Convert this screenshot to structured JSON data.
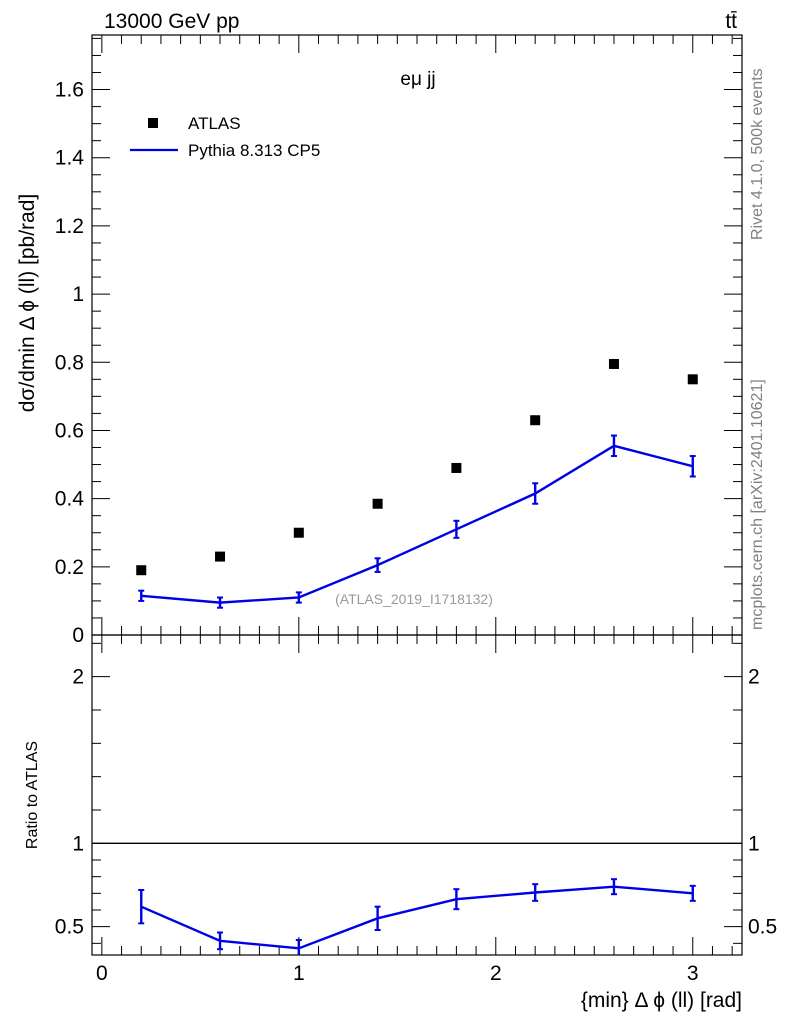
{
  "header": {
    "left": "13000 GeV pp",
    "right": "tt̄"
  },
  "side_text": {
    "rivet": "Rivet 4.1.0,  500k events",
    "mcplots": "mcplots.cern.ch [arXiv:2401.10621]"
  },
  "colors": {
    "mc": "#0000e6",
    "data": "#000000",
    "watermark": "#9a9a9a"
  },
  "chart_data": [
    {
      "type": "scatter",
      "panel": "main",
      "title": "eμ jj",
      "xlabel": "{min} Δ ϕ (ll) [rad]",
      "ylabel": "dσ/dmin Δ ϕ (ll) [pb/rad]",
      "xlim": [
        -0.05,
        3.25
      ],
      "ylim": [
        0,
        1.76
      ],
      "yticks": [
        "0",
        "0.2",
        "0.4",
        "0.6",
        "0.8",
        "1",
        "1.2",
        "1.4",
        "1.6"
      ],
      "watermark": "(ATLAS_2019_I1718132)",
      "legend": [
        {
          "label": "ATLAS",
          "marker": "square"
        },
        {
          "label": "Pythia 8.313 CP5",
          "marker": "line"
        }
      ],
      "series": [
        {
          "name": "ATLAS",
          "x": [
            0.2,
            0.6,
            1.0,
            1.4,
            1.8,
            2.2,
            2.6,
            3.0
          ],
          "y": [
            0.19,
            0.23,
            0.3,
            0.385,
            0.49,
            0.63,
            0.795,
            0.75
          ]
        },
        {
          "name": "Pythia 8.313 CP5",
          "x": [
            0.2,
            0.6,
            1.0,
            1.4,
            1.8,
            2.2,
            2.6,
            3.0
          ],
          "y": [
            0.115,
            0.095,
            0.11,
            0.205,
            0.31,
            0.415,
            0.555,
            0.495
          ],
          "yerr": [
            0.015,
            0.015,
            0.015,
            0.02,
            0.025,
            0.03,
            0.03,
            0.03
          ]
        }
      ]
    },
    {
      "type": "line",
      "panel": "ratio",
      "ylabel": "Ratio to ATLAS",
      "xlim": [
        -0.05,
        3.25
      ],
      "ylim": [
        0.33,
        2.25
      ],
      "yticks": [
        "0.5",
        "1",
        "2"
      ],
      "xticks": [
        "0",
        "1",
        "2",
        "3"
      ],
      "reference_line": 1,
      "series": [
        {
          "name": "Pythia 8.313 CP5",
          "x": [
            0.2,
            0.6,
            1.0,
            1.4,
            1.8,
            2.2,
            2.6,
            3.0
          ],
          "y": [
            0.62,
            0.415,
            0.37,
            0.55,
            0.665,
            0.705,
            0.74,
            0.7
          ],
          "yerr": [
            0.1,
            0.05,
            0.05,
            0.07,
            0.06,
            0.05,
            0.045,
            0.045
          ]
        }
      ]
    }
  ]
}
